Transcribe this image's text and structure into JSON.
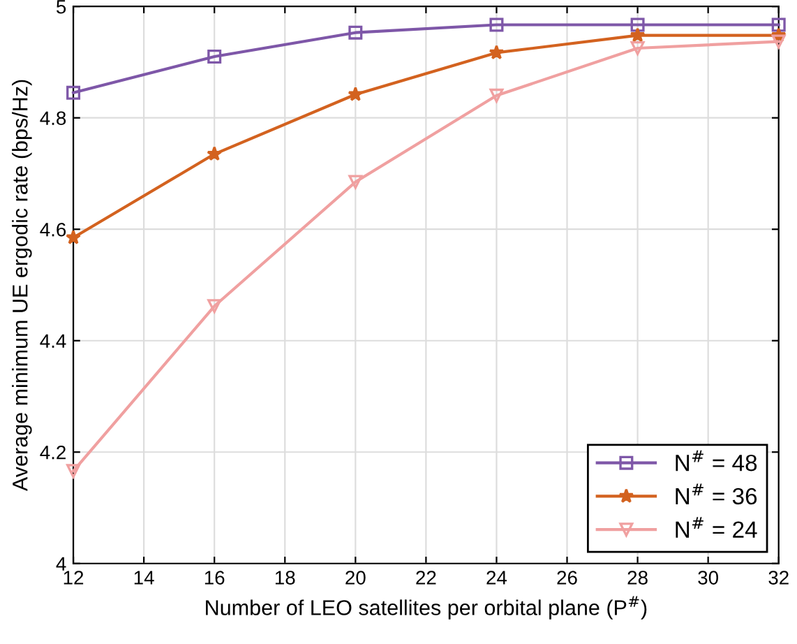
{
  "chart_data": {
    "type": "line",
    "xlabel": "Number of LEO satellites per orbital plane (P$^{#}$)",
    "ylabel": "Average minimum UE ergodic rate (bps/Hz)",
    "x": [
      12,
      16,
      20,
      24,
      28,
      32
    ],
    "series": [
      {
        "name": "N$^{#}$ = 48",
        "color": "#7e57a8",
        "marker": "square",
        "values": [
          4.845,
          4.91,
          4.953,
          4.967,
          4.967,
          4.967
        ]
      },
      {
        "name": "N$^{#}$ = 36",
        "color": "#d3621f",
        "marker": "star",
        "values": [
          4.585,
          4.735,
          4.842,
          4.917,
          4.948,
          4.948
        ]
      },
      {
        "name": "N$^{#}$ = 24",
        "color": "#f0a0a0",
        "marker": "triangle",
        "values": [
          4.166,
          4.462,
          4.685,
          4.84,
          4.925,
          4.937
        ]
      }
    ],
    "xlim": [
      12,
      32
    ],
    "xticks": [
      12,
      14,
      16,
      18,
      20,
      22,
      24,
      26,
      28,
      30,
      32
    ],
    "ylim": [
      4,
      5
    ],
    "yticks": [
      4,
      4.2,
      4.4,
      4.6,
      4.8,
      5
    ],
    "grid": true,
    "legend": "bottom right",
    "line_style": "solid"
  }
}
